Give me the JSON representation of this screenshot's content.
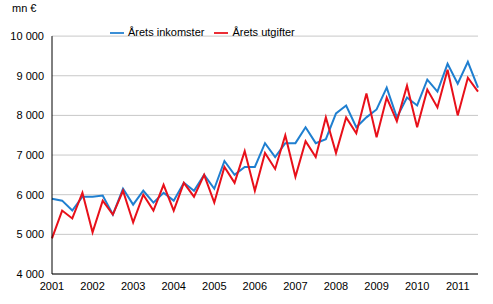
{
  "chart_data": {
    "type": "line",
    "ylabel": "mn €",
    "categories": [
      "2001",
      null,
      null,
      null,
      "2002",
      null,
      null,
      null,
      "2003",
      null,
      null,
      null,
      "2004",
      null,
      null,
      null,
      "2005",
      null,
      null,
      null,
      "2006",
      null,
      null,
      null,
      "2007",
      null,
      null,
      null,
      "2008",
      null,
      null,
      null,
      "2009",
      null,
      null,
      null,
      "2010",
      null,
      null,
      null,
      "2011",
      null,
      null
    ],
    "series": [
      {
        "name": "Årets inkomster",
        "color": "#1f7fd0",
        "values": [
          5900,
          5850,
          5600,
          5950,
          5950,
          5980,
          5500,
          6150,
          5750,
          6100,
          5800,
          6050,
          5850,
          6300,
          6100,
          6500,
          6150,
          6850,
          6500,
          6700,
          6700,
          7300,
          6950,
          7300,
          7300,
          7700,
          7300,
          7400,
          8050,
          8250,
          7700,
          7950,
          8150,
          8700,
          7950,
          8450,
          8250,
          8900,
          8600,
          9300,
          8800,
          9350,
          8700
        ]
      },
      {
        "name": "Årets utgifter",
        "color": "#e8101a",
        "values": [
          4900,
          5600,
          5400,
          6050,
          5050,
          5850,
          5500,
          6100,
          5300,
          6000,
          5600,
          6250,
          5600,
          6300,
          5950,
          6500,
          5800,
          6700,
          6300,
          7100,
          6100,
          7050,
          6650,
          7500,
          6450,
          7350,
          6950,
          7950,
          7050,
          7950,
          7550,
          8550,
          7450,
          8450,
          7850,
          8750,
          7700,
          8650,
          8200,
          9150,
          8000,
          8950,
          8600
        ]
      }
    ],
    "ylim": [
      4000,
      10000
    ],
    "yticks": [
      {
        "value": 4000,
        "label": "4 000"
      },
      {
        "value": 5000,
        "label": "5 000"
      },
      {
        "value": 6000,
        "label": "6 000"
      },
      {
        "value": 7000,
        "label": "7 000"
      },
      {
        "value": 8000,
        "label": "8 000"
      },
      {
        "value": 9000,
        "label": "9 000"
      },
      {
        "value": 10000,
        "label": "10 000"
      }
    ],
    "grid": true,
    "legend": "top"
  }
}
